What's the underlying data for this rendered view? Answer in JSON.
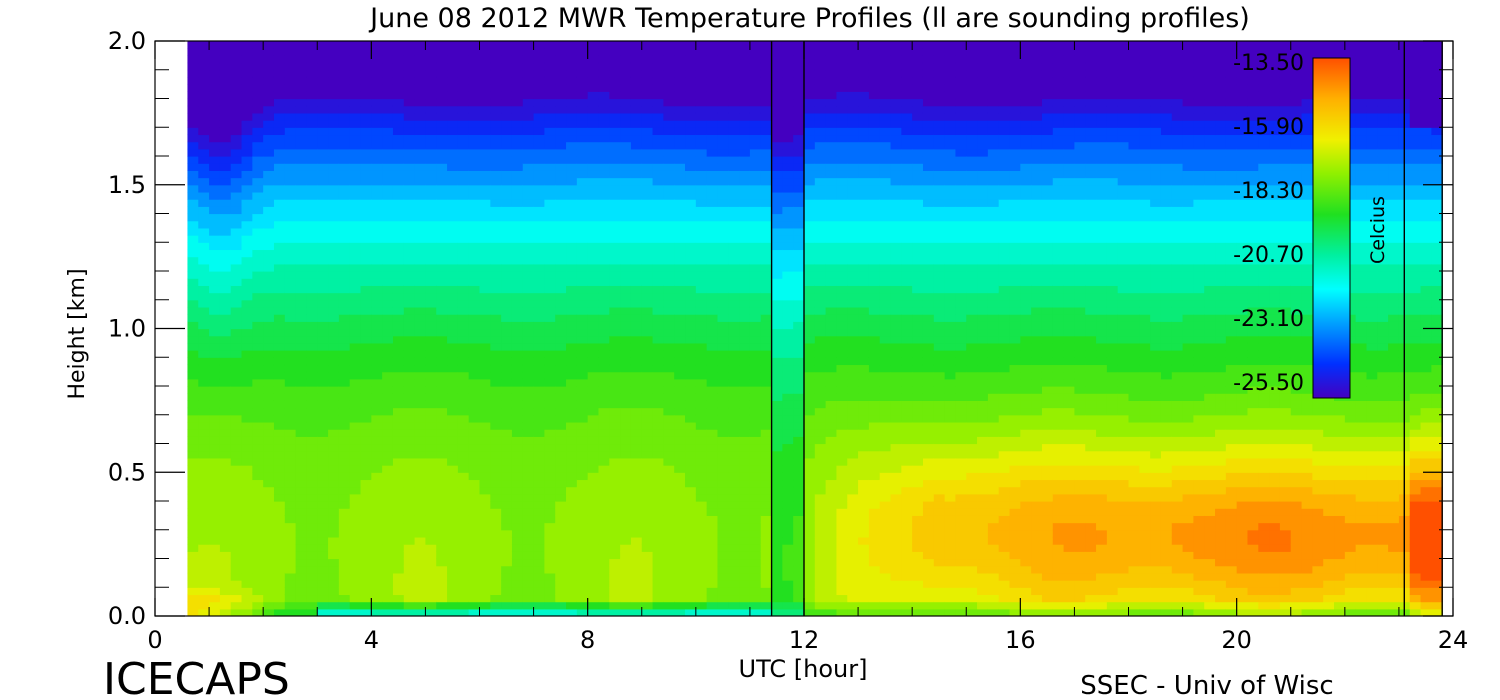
{
  "chart_data": {
    "type": "heatmap",
    "title": "June 08 2012 MWR Temperature Profiles (ll are sounding profiles)",
    "xlabel": "UTC [hour]",
    "ylabel": "Height [km]",
    "xlim": [
      0,
      24
    ],
    "ylim": [
      0,
      2.0
    ],
    "x_ticks": [
      0,
      4,
      8,
      12,
      16,
      20,
      24
    ],
    "x_tick_labels": [
      "0",
      "4",
      "8",
      "12",
      "16",
      "20",
      "24"
    ],
    "y_ticks": [
      0.0,
      0.5,
      1.0,
      1.5,
      2.0
    ],
    "y_tick_labels": [
      "0.0",
      "0.5",
      "1.0",
      "1.5",
      "2.0"
    ],
    "data_x_range": [
      0.6,
      23.8
    ],
    "sounding_profiles_utc": [
      11.4,
      12.0,
      23.1,
      23.8
    ],
    "colorbar": {
      "label": "Celcius",
      "min": -25.5,
      "max": -13.5,
      "tick_labels": [
        "-13.50",
        "-15.90",
        "-18.30",
        "-20.70",
        "-23.10",
        "-25.50"
      ]
    },
    "grid": false,
    "colors": {
      "min": "#4400c0",
      "max": "#ff5000"
    }
  },
  "footer": {
    "left": "ICECAPS",
    "right": "SSEC - Univ of Wisc"
  }
}
